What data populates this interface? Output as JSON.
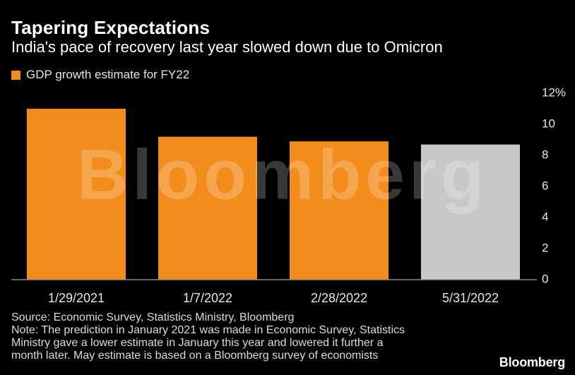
{
  "chart_data": {
    "type": "bar",
    "title": "Tapering Expectations",
    "subtitle": "India's pace of recovery last year slowed down due to Omicron",
    "categories": [
      "1/29/2021",
      "1/7/2022",
      "2/28/2022",
      "5/31/2022"
    ],
    "series": [
      {
        "name": "GDP growth estimate for FY22",
        "values": [
          11,
          9.2,
          8.9,
          8.7
        ],
        "colors": [
          "#f28c1c",
          "#f28c1c",
          "#f28c1c",
          "#c8c8c8"
        ]
      }
    ],
    "ylim": [
      0,
      12
    ],
    "yticks": [
      {
        "value": 0,
        "label": "0"
      },
      {
        "value": 2,
        "label": "2"
      },
      {
        "value": 4,
        "label": "4"
      },
      {
        "value": 6,
        "label": "6"
      },
      {
        "value": 8,
        "label": "8"
      },
      {
        "value": 10,
        "label": "10"
      },
      {
        "value": 12,
        "label": "12%"
      }
    ],
    "xlabel": "",
    "ylabel": "",
    "grid": false,
    "legend_position": "top-left",
    "axis_color": "#8c8c8c",
    "tick_label_color": "#e6e6e6",
    "watermark": "Bloomberg"
  },
  "legend": {
    "label": "GDP growth estimate for FY22",
    "color": "#f28c1c"
  },
  "footnote": {
    "lines": [
      "Source: Economic Survey, Statistics Ministry, Bloomberg",
      "Note: The prediction in January 2021 was made in Economic Survey, Statistics",
      "Ministry gave a lower estimate in January this year and lowered it further a",
      "month later. May estimate is based on a Bloomberg survey of economists"
    ]
  },
  "brand": "Bloomberg"
}
